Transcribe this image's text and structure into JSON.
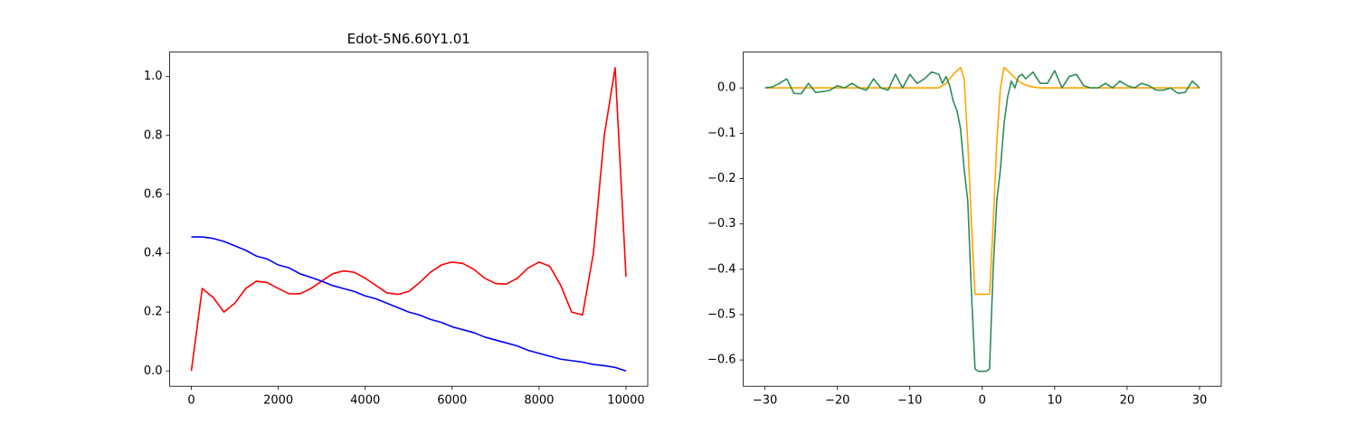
{
  "chart_data": [
    {
      "type": "line",
      "title": "Edot-5N6.60Y1.01",
      "x": [
        0,
        250,
        500,
        750,
        1000,
        1250,
        1500,
        1750,
        2000,
        2250,
        2500,
        2750,
        3000,
        3250,
        3500,
        3750,
        4000,
        4250,
        4500,
        4750,
        5000,
        5250,
        5500,
        5750,
        6000,
        6250,
        6500,
        6750,
        7000,
        7250,
        7500,
        7750,
        8000,
        8250,
        8500,
        8750,
        9000,
        9250,
        9500,
        9750,
        10000
      ],
      "series": [
        {
          "color": "red",
          "values": [
            0,
            0.28,
            0.25,
            0.2,
            0.23,
            0.28,
            0.305,
            0.3,
            0.28,
            0.262,
            0.262,
            0.28,
            0.305,
            0.33,
            0.34,
            0.335,
            0.315,
            0.29,
            0.265,
            0.26,
            0.27,
            0.3,
            0.335,
            0.36,
            0.37,
            0.365,
            0.345,
            0.315,
            0.297,
            0.295,
            0.315,
            0.35,
            0.37,
            0.355,
            0.29,
            0.2,
            0.19,
            0.4,
            0.8,
            1.03,
            0.32
          ]
        },
        {
          "color": "blue",
          "values": [
            0.455,
            0.455,
            0.45,
            0.44,
            0.425,
            0.41,
            0.39,
            0.38,
            0.36,
            0.35,
            0.33,
            0.318,
            0.305,
            0.29,
            0.28,
            0.27,
            0.255,
            0.245,
            0.23,
            0.215,
            0.2,
            0.19,
            0.175,
            0.165,
            0.15,
            0.14,
            0.13,
            0.115,
            0.105,
            0.095,
            0.085,
            0.07,
            0.06,
            0.05,
            0.04,
            0.035,
            0.03,
            0.022,
            0.018,
            0.012,
            0
          ]
        }
      ],
      "xlim": [
        -500,
        10500
      ],
      "ylim": [
        -0.052,
        1.083
      ],
      "xticks": [
        0,
        2000,
        4000,
        6000,
        8000,
        10000
      ],
      "yticks": [
        {
          "value": 0,
          "label": "0.0"
        },
        0.2,
        0.4,
        0.6,
        0.8,
        {
          "value": 1,
          "label": "1.0"
        }
      ]
    },
    {
      "type": "line",
      "x": [
        -30,
        -29,
        -28,
        -27,
        -26,
        -25,
        -24,
        -23,
        -22,
        -21,
        -20,
        -19,
        -18,
        -17,
        -16,
        -15,
        -14,
        -13,
        -12,
        -11,
        -10,
        -9,
        -8,
        -7,
        -6,
        -5.5,
        -5,
        -4.5,
        -4,
        -3.5,
        -3,
        -2.5,
        -2,
        -1.5,
        -1,
        -0.5,
        0,
        0.5,
        1,
        1.5,
        2,
        2.5,
        3,
        3.5,
        4,
        4.5,
        5,
        5.5,
        6,
        7,
        8,
        9,
        10,
        11,
        12,
        13,
        14,
        15,
        16,
        17,
        18,
        19,
        20,
        21,
        22,
        23,
        24,
        25,
        26,
        27,
        28,
        29,
        30
      ],
      "series": [
        {
          "color": "orange",
          "values": [
            0,
            0,
            0,
            0,
            0,
            0,
            0,
            0,
            0,
            0,
            0,
            0,
            0,
            0,
            0,
            0,
            0,
            0,
            0,
            0,
            0,
            0,
            0,
            0,
            0,
            0.005,
            0.01,
            0.02,
            0.03,
            0.038,
            0.045,
            0.02,
            -0.12,
            -0.3,
            -0.455,
            -0.455,
            -0.455,
            -0.455,
            -0.455,
            -0.3,
            -0.12,
            0,
            0.045,
            0.038,
            0.03,
            0.022,
            0.015,
            0.01,
            0.006,
            0.002,
            0,
            0,
            0,
            0,
            0,
            0,
            0,
            0,
            0,
            0,
            0,
            0,
            0,
            0,
            0,
            0,
            0,
            0,
            0,
            0,
            0,
            0,
            0
          ]
        },
        {
          "color": "seagreen",
          "values": [
            0,
            0.002,
            0.01,
            0.02,
            -0.012,
            -0.013,
            0.01,
            -0.01,
            -0.008,
            -0.005,
            0.005,
            0,
            0.01,
            0,
            -0.005,
            0.02,
            0,
            -0.005,
            0.03,
            0,
            0.03,
            0.01,
            0.02,
            0.035,
            0.03,
            0.01,
            0.025,
            0.005,
            -0.03,
            -0.05,
            -0.09,
            -0.18,
            -0.25,
            -0.45,
            -0.62,
            -0.625,
            -0.625,
            -0.625,
            -0.62,
            -0.4,
            -0.25,
            -0.18,
            -0.08,
            -0.02,
            0.015,
            0,
            0.025,
            0.03,
            0.02,
            0.035,
            0.01,
            0.01,
            0.038,
            0,
            0.025,
            0.03,
            0.005,
            0,
            0,
            0.01,
            0,
            0.015,
            0.005,
            0,
            0.01,
            0.005,
            -0.005,
            -0.005,
            0,
            -0.012,
            -0.01,
            0.015,
            0
          ]
        }
      ],
      "xlim": [
        -33,
        33
      ],
      "ylim": [
        -0.658,
        0.079
      ],
      "xticks": [
        {
          "value": -30,
          "label": "−30"
        },
        {
          "value": -20,
          "label": "−20"
        },
        {
          "value": -10,
          "label": "−10"
        },
        0,
        10,
        20,
        30
      ],
      "yticks": [
        {
          "value": -0.6,
          "label": "−0.6"
        },
        {
          "value": -0.5,
          "label": "−0.5"
        },
        {
          "value": -0.4,
          "label": "−0.4"
        },
        {
          "value": -0.3,
          "label": "−0.3"
        },
        {
          "value": -0.2,
          "label": "−0.2"
        },
        {
          "value": -0.1,
          "label": "−0.1"
        },
        {
          "value": 0,
          "label": "0.0"
        }
      ]
    }
  ]
}
